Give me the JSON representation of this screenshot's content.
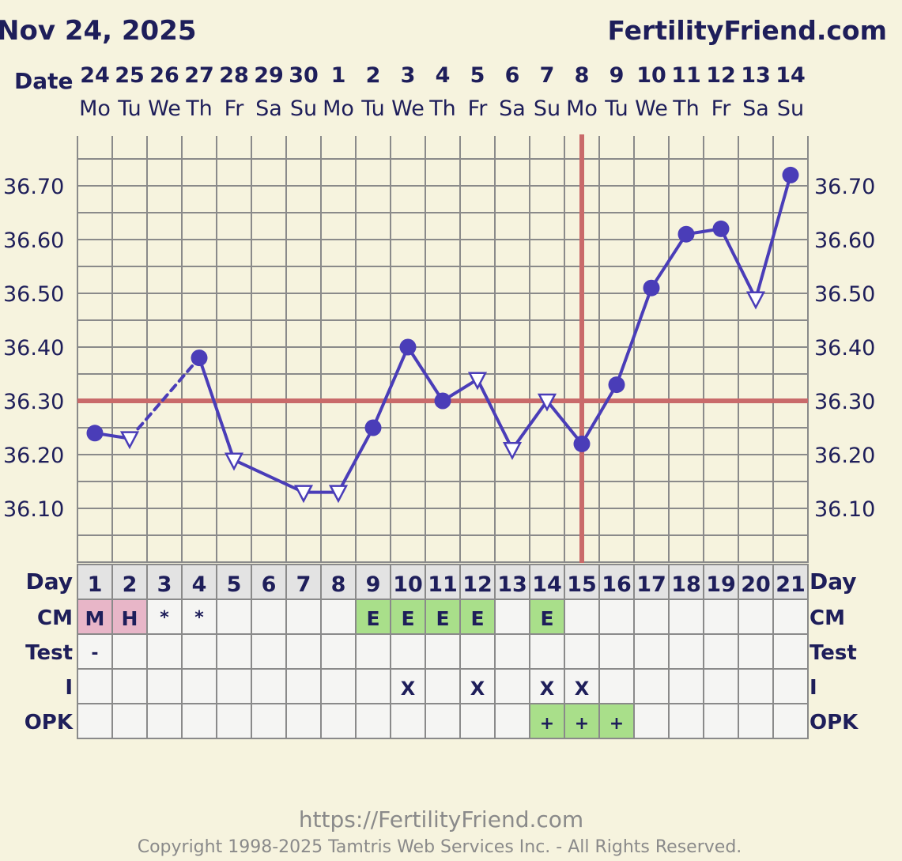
{
  "header": {
    "chart_date": "Nov 24, 2025",
    "site_name": "FertilityFriend.com"
  },
  "labels": {
    "date_row": "Date",
    "day_row": "Day",
    "cm_row": "CM",
    "test_row": "Test",
    "i_row": "I",
    "opk_row": "OPK"
  },
  "footer": {
    "url": "https://FertilityFriend.com",
    "copyright": "Copyright 1998-2025 Tamtris Web Services Inc. - All Rights Reserved."
  },
  "colors": {
    "page_bg": "#f6f3de",
    "grid": "#8a8a8a",
    "line": "#4a3db8",
    "coverline": "#c96a6a",
    "cm_menses": "#e8b6c8",
    "cm_egg_white": "#a9df8a",
    "opk_positive": "#a9df8a",
    "day_row_bg": "#e3e3e3",
    "table_bg": "#f5f5f3"
  },
  "chart_data": {
    "type": "line",
    "title": "",
    "dates": [
      "24",
      "25",
      "26",
      "27",
      "28",
      "29",
      "30",
      "1",
      "2",
      "3",
      "4",
      "5",
      "6",
      "7",
      "8",
      "9",
      "10",
      "11",
      "12",
      "13",
      "14"
    ],
    "weekdays": [
      "Mo",
      "Tu",
      "We",
      "Th",
      "Fr",
      "Sa",
      "Su",
      "Mo",
      "Tu",
      "We",
      "Th",
      "Fr",
      "Sa",
      "Su",
      "Mo",
      "Tu",
      "We",
      "Th",
      "Fr",
      "Sa",
      "Su"
    ],
    "cycle_days": [
      1,
      2,
      3,
      4,
      5,
      6,
      7,
      8,
      9,
      10,
      11,
      12,
      13,
      14,
      15,
      16,
      17,
      18,
      19,
      20,
      21
    ],
    "temperatures": [
      36.24,
      36.23,
      null,
      36.38,
      36.19,
      null,
      36.13,
      36.13,
      36.25,
      36.4,
      36.3,
      36.34,
      36.21,
      36.3,
      36.22,
      36.33,
      36.51,
      36.61,
      36.62,
      36.49,
      36.72
    ],
    "marker_types": [
      "dot",
      "triangle",
      null,
      "dot",
      "triangle",
      null,
      "triangle",
      "triangle",
      "dot",
      "dot",
      "dot",
      "triangle",
      "triangle",
      "triangle",
      "dot",
      "dot",
      "dot",
      "dot",
      "dot",
      "triangle",
      "dot"
    ],
    "dashed_segments": [
      [
        2,
        4
      ],
      [
        4,
        7
      ]
    ],
    "y_ticks": [
      "36.70",
      "36.60",
      "36.50",
      "36.40",
      "36.30",
      "36.20",
      "36.10"
    ],
    "ylim": [
      36.0,
      36.79
    ],
    "coverline": 36.3,
    "ovulation_day": 15,
    "grid": true,
    "cm": [
      "M",
      "H",
      "*",
      "*",
      "",
      "",
      "",
      "",
      "E",
      "E",
      "E",
      "E",
      "",
      "E",
      "",
      "",
      "",
      "",
      "",
      "",
      ""
    ],
    "cm_colors": [
      "menses",
      "menses",
      "",
      "",
      "",
      "",
      "",
      "",
      "egg_white",
      "egg_white",
      "egg_white",
      "egg_white",
      "",
      "egg_white",
      "",
      "",
      "",
      "",
      "",
      "",
      ""
    ],
    "test": [
      "-",
      "",
      "",
      "",
      "",
      "",
      "",
      "",
      "",
      "",
      "",
      "",
      "",
      "",
      "",
      "",
      "",
      "",
      "",
      "",
      ""
    ],
    "intercourse": [
      "",
      "",
      "",
      "",
      "",
      "",
      "",
      "",
      "",
      "X",
      "",
      "X",
      "",
      "X",
      "X",
      "",
      "",
      "",
      "",
      "",
      ""
    ],
    "opk": [
      "",
      "",
      "",
      "",
      "",
      "",
      "",
      "",
      "",
      "",
      "",
      "",
      "",
      "+",
      "+",
      "+",
      "",
      "",
      "",
      "",
      ""
    ]
  }
}
